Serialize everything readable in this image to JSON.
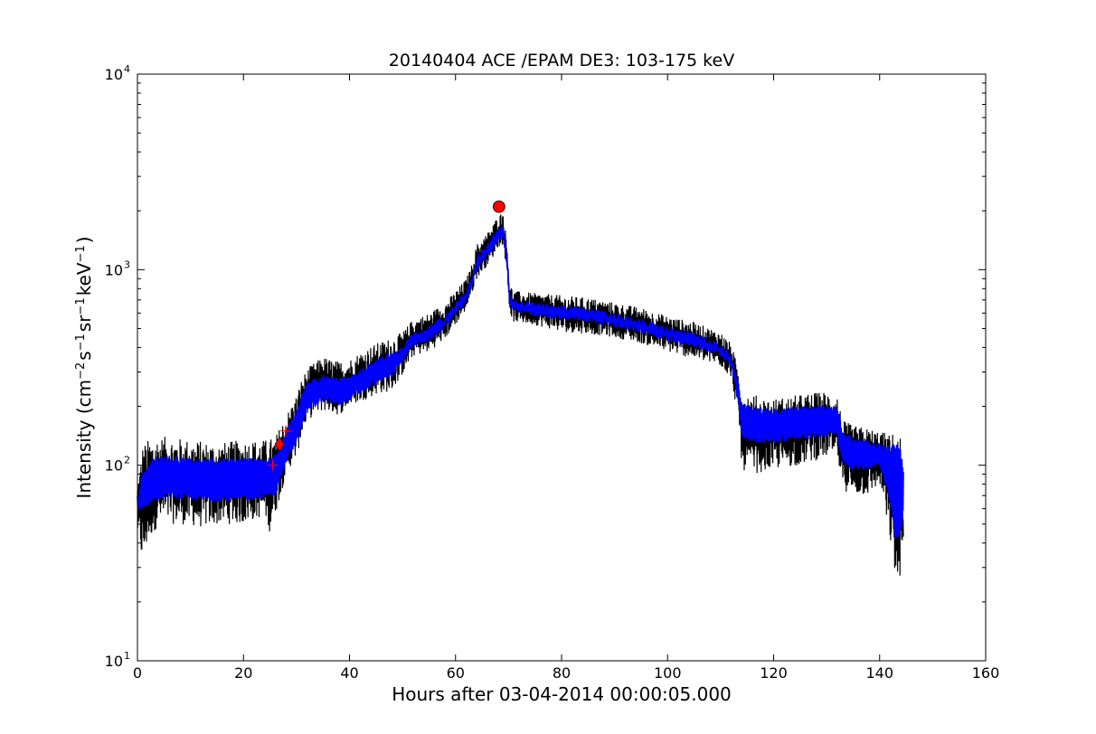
{
  "chart_data": {
    "type": "line",
    "title": "20140404 ACE /EPAM DE3: 103-175 keV",
    "xlabel": "Hours after 03-04-2014 00:00:05.000",
    "ylabel": {
      "prefix": "Intensity (cm",
      "sup1": "−2",
      "mid1": "s",
      "sup2": "−1",
      "mid2": "sr",
      "sup3": "−1",
      "mid3": "keV",
      "sup4": "−1",
      "suffix": ")"
    },
    "xlim": [
      0,
      160
    ],
    "ylim": [
      10,
      10000
    ],
    "yscale": "log",
    "x_ticks": [
      0,
      20,
      40,
      60,
      80,
      100,
      120,
      140,
      160
    ],
    "y_ticks": [
      {
        "value": 10,
        "base": "10",
        "exp": "1"
      },
      {
        "value": 100,
        "base": "10",
        "exp": "2"
      },
      {
        "value": 1000,
        "base": "10",
        "exp": "3"
      },
      {
        "value": 10000,
        "base": "10",
        "exp": "4"
      }
    ],
    "grid": false,
    "series": [
      {
        "style": "upper-envelope",
        "color": "#000000",
        "x": [
          0,
          1,
          3,
          6,
          10,
          15,
          20,
          24,
          26,
          27,
          28,
          30,
          31,
          32,
          33,
          35,
          38,
          40,
          42,
          45,
          48,
          50,
          52,
          55,
          58,
          60,
          62,
          63,
          64,
          66,
          67,
          68,
          69,
          69.8,
          70.2,
          71,
          75,
          80,
          85,
          90,
          95,
          100,
          105,
          110,
          112,
          113.5,
          114,
          116,
          120,
          125,
          130,
          132,
          133,
          135,
          138,
          140,
          142,
          143,
          144,
          144.5
        ],
        "values": [
          80,
          130,
          140,
          140,
          135,
          130,
          135,
          135,
          140,
          160,
          180,
          230,
          280,
          310,
          330,
          360,
          340,
          350,
          380,
          420,
          450,
          480,
          560,
          600,
          680,
          780,
          900,
          1050,
          1350,
          1550,
          1700,
          1900,
          2000,
          1300,
          850,
          780,
          760,
          740,
          720,
          680,
          640,
          580,
          540,
          480,
          420,
          300,
          250,
          230,
          220,
          230,
          240,
          230,
          170,
          160,
          155,
          150,
          145,
          150,
          140,
          60
        ]
      },
      {
        "style": "lower-envelope",
        "color": "#000000",
        "x": [
          0,
          1,
          2,
          4,
          8,
          12,
          16,
          20,
          24,
          25,
          27,
          28,
          30,
          31,
          32,
          35,
          38,
          40,
          42,
          45,
          48,
          50,
          52,
          55,
          58,
          60,
          62,
          63,
          64,
          66,
          67,
          68,
          69,
          69.8,
          70.2,
          71,
          75,
          80,
          85,
          90,
          95,
          100,
          105,
          110,
          112,
          113.5,
          114,
          116,
          120,
          125,
          130,
          132,
          133,
          135,
          138,
          140,
          142,
          143,
          143.5,
          144,
          144.5
        ],
        "values": [
          45,
          30,
          40,
          50,
          50,
          48,
          50,
          50,
          55,
          45,
          70,
          90,
          110,
          140,
          170,
          190,
          180,
          200,
          210,
          230,
          240,
          290,
          360,
          380,
          440,
          520,
          620,
          740,
          900,
          1050,
          1150,
          1300,
          1350,
          900,
          600,
          540,
          520,
          480,
          470,
          450,
          420,
          380,
          350,
          320,
          280,
          160,
          95,
          90,
          95,
          100,
          110,
          110,
          75,
          70,
          70,
          80,
          40,
          25,
          22,
          30,
          35
        ]
      },
      {
        "style": "band",
        "color": "#0000ff",
        "x": [
          0,
          1,
          3,
          6,
          10,
          15,
          20,
          24,
          26,
          27,
          28,
          30,
          31,
          32,
          35,
          38,
          40,
          42,
          45,
          48,
          50,
          52,
          55,
          58,
          60,
          62,
          63,
          64,
          66,
          67,
          68,
          69,
          69.8,
          70.2,
          71,
          75,
          80,
          85,
          90,
          95,
          100,
          105,
          110,
          112,
          113.5,
          114,
          116,
          120,
          125,
          130,
          132,
          133,
          135,
          138,
          140,
          142,
          143,
          144,
          144.5
        ],
        "upper": [
          70,
          95,
          110,
          112,
          110,
          108,
          110,
          110,
          115,
          130,
          150,
          190,
          230,
          270,
          290,
          280,
          290,
          310,
          350,
          380,
          410,
          480,
          520,
          590,
          680,
          790,
          920,
          1180,
          1380,
          1500,
          1650,
          1750,
          1150,
          750,
          700,
          680,
          660,
          640,
          600,
          560,
          510,
          480,
          420,
          370,
          250,
          210,
          200,
          195,
          200,
          205,
          200,
          150,
          140,
          135,
          130,
          125,
          130,
          120,
          95
        ],
        "lower": [
          55,
          60,
          65,
          68,
          66,
          65,
          66,
          68,
          70,
          85,
          100,
          130,
          160,
          190,
          210,
          200,
          215,
          230,
          260,
          280,
          340,
          400,
          430,
          500,
          580,
          680,
          800,
          1000,
          1150,
          1250,
          1400,
          1450,
          950,
          650,
          600,
          580,
          550,
          540,
          510,
          470,
          430,
          400,
          360,
          320,
          190,
          140,
          130,
          130,
          135,
          140,
          140,
          100,
          95,
          95,
          100,
          65,
          40,
          45,
          60
        ]
      }
    ],
    "markers": [
      {
        "type": "plus",
        "x": 25.5,
        "y": 100,
        "color": "#ff0000"
      },
      {
        "type": "diamond",
        "x": 26.8,
        "y": 128,
        "color": "#ff0000"
      },
      {
        "type": "plus",
        "x": 28.0,
        "y": 150,
        "color": "#ff0000"
      },
      {
        "type": "circle",
        "x": 68.2,
        "y": 2100,
        "color": "#ff0000"
      }
    ]
  }
}
